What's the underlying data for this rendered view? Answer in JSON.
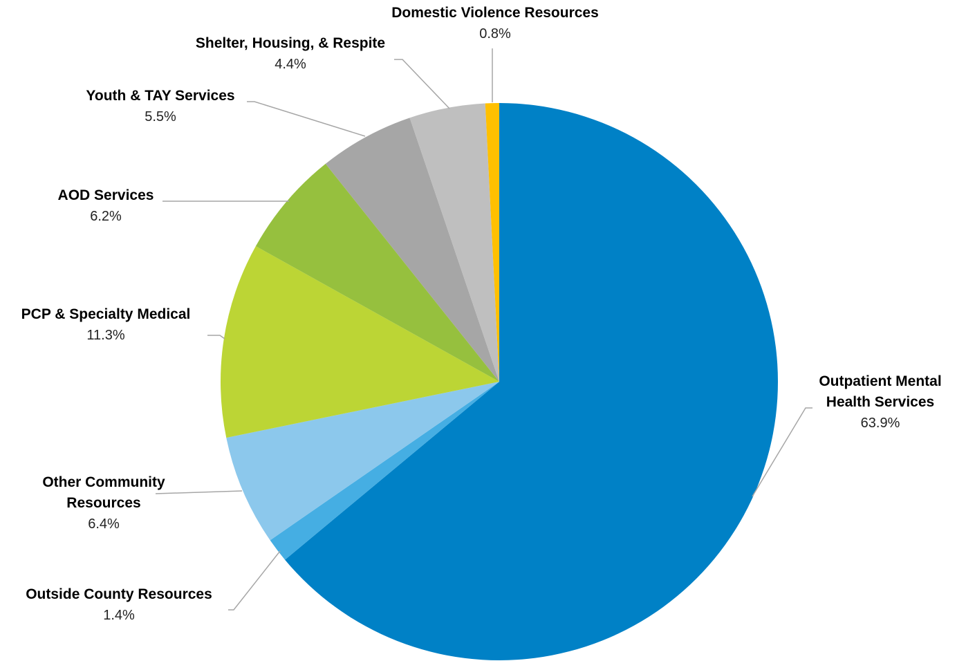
{
  "chart_data": {
    "type": "pie",
    "categories": [
      "Outpatient Mental Health Services",
      "Outside County Resources",
      "Other Community Resources",
      "PCP & Specialty Medical",
      "AOD Services",
      "Youth & TAY Services",
      "Shelter, Housing, & Respite",
      "Domestic Violence Resources"
    ],
    "values": [
      63.9,
      1.4,
      6.4,
      11.3,
      6.2,
      5.5,
      4.4,
      0.8
    ],
    "value_labels": [
      "63.9%",
      "1.4%",
      "6.4%",
      "11.3%",
      "6.2%",
      "5.5%",
      "4.4%",
      "0.8%"
    ],
    "colors": [
      "#0081c6",
      "#45aee3",
      "#8cc8ec",
      "#bcd535",
      "#96c03e",
      "#a6a6a6",
      "#bfbfbf",
      "#ffc000"
    ]
  }
}
